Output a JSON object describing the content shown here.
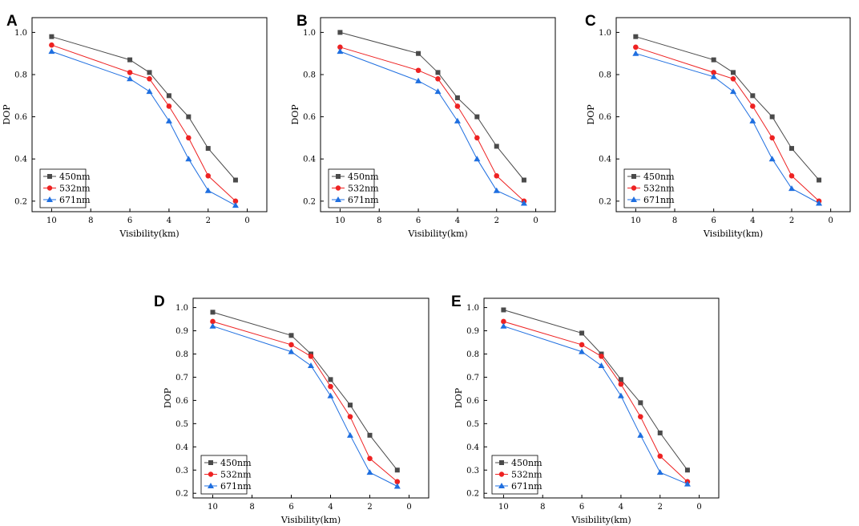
{
  "figure": {
    "colors": {
      "s450": "#4a4a4a",
      "s532": "#ee2222",
      "s671": "#1f6fe0",
      "frame": "#000000"
    }
  },
  "chart_data": [
    {
      "type": "line",
      "panel": "A",
      "xlabel": "Visibility(km)",
      "ylabel": "DOP",
      "xlim": [
        11,
        -1
      ],
      "ylim": [
        0.15,
        1.07
      ],
      "xticks": [
        10,
        8,
        6,
        4,
        2,
        0
      ],
      "yticks": [
        0.2,
        0.4,
        0.6,
        0.8,
        1.0
      ],
      "ytick_labels": [
        "0.2",
        "0.4",
        "0.6",
        "0.8",
        "1.0"
      ],
      "x": [
        10,
        6,
        5,
        4,
        3,
        2,
        0.6
      ],
      "series": [
        {
          "name": "450nm",
          "marker": "square",
          "values": [
            0.98,
            0.87,
            0.81,
            0.7,
            0.6,
            0.45,
            0.3
          ]
        },
        {
          "name": "532nm",
          "marker": "circle",
          "values": [
            0.94,
            0.81,
            0.78,
            0.65,
            0.5,
            0.32,
            0.2
          ]
        },
        {
          "name": "671nm",
          "marker": "triangle",
          "values": [
            0.91,
            0.78,
            0.72,
            0.58,
            0.4,
            0.25,
            0.18
          ]
        }
      ],
      "legend_position": "bottom-left"
    },
    {
      "type": "line",
      "panel": "B",
      "xlabel": "Visibility(km)",
      "ylabel": "DOP",
      "xlim": [
        11,
        -1
      ],
      "ylim": [
        0.15,
        1.07
      ],
      "xticks": [
        10,
        8,
        6,
        4,
        2,
        0
      ],
      "yticks": [
        0.2,
        0.4,
        0.6,
        0.8,
        1.0
      ],
      "ytick_labels": [
        "0.2",
        "0.4",
        "0.6",
        "0.8",
        "1.0"
      ],
      "x": [
        10,
        6,
        5,
        4,
        3,
        2,
        0.6
      ],
      "series": [
        {
          "name": "450nm",
          "marker": "square",
          "values": [
            1.0,
            0.9,
            0.81,
            0.69,
            0.6,
            0.46,
            0.3
          ]
        },
        {
          "name": "532nm",
          "marker": "circle",
          "values": [
            0.93,
            0.82,
            0.78,
            0.65,
            0.5,
            0.32,
            0.2
          ]
        },
        {
          "name": "671nm",
          "marker": "triangle",
          "values": [
            0.91,
            0.77,
            0.72,
            0.58,
            0.4,
            0.25,
            0.19
          ]
        }
      ],
      "legend_position": "bottom-left"
    },
    {
      "type": "line",
      "panel": "C",
      "xlabel": "Visibility(km)",
      "ylabel": "DOP",
      "xlim": [
        11,
        -1
      ],
      "ylim": [
        0.15,
        1.07
      ],
      "xticks": [
        10,
        8,
        6,
        4,
        2,
        0
      ],
      "yticks": [
        0.2,
        0.4,
        0.6,
        0.8,
        1.0
      ],
      "ytick_labels": [
        "0.2",
        "0.4",
        "0.6",
        "0.8",
        "1.0"
      ],
      "x": [
        10,
        6,
        5,
        4,
        3,
        2,
        0.6
      ],
      "series": [
        {
          "name": "450nm",
          "marker": "square",
          "values": [
            0.98,
            0.87,
            0.81,
            0.7,
            0.6,
            0.45,
            0.3
          ]
        },
        {
          "name": "532nm",
          "marker": "circle",
          "values": [
            0.93,
            0.81,
            0.78,
            0.65,
            0.5,
            0.32,
            0.2
          ]
        },
        {
          "name": "671nm",
          "marker": "triangle",
          "values": [
            0.9,
            0.79,
            0.72,
            0.58,
            0.4,
            0.26,
            0.19
          ]
        }
      ],
      "legend_position": "bottom-left"
    },
    {
      "type": "line",
      "panel": "D",
      "xlabel": "Visibility(km)",
      "ylabel": "DOP",
      "xlim": [
        11,
        -1
      ],
      "ylim": [
        0.18,
        1.04
      ],
      "xticks": [
        10,
        8,
        6,
        4,
        2,
        0
      ],
      "yticks": [
        0.2,
        0.3,
        0.4,
        0.5,
        0.6,
        0.7,
        0.8,
        0.9,
        1.0
      ],
      "ytick_labels": [
        "0.2",
        "0.3",
        "0.4",
        "0.5",
        "0.6",
        "0.7",
        "0.8",
        "0.9",
        "1.0"
      ],
      "x": [
        10,
        6,
        5,
        4,
        3,
        2,
        0.6
      ],
      "series": [
        {
          "name": "450nm",
          "marker": "square",
          "values": [
            0.98,
            0.88,
            0.8,
            0.69,
            0.58,
            0.45,
            0.3
          ]
        },
        {
          "name": "532nm",
          "marker": "circle",
          "values": [
            0.94,
            0.84,
            0.79,
            0.66,
            0.53,
            0.35,
            0.25
          ]
        },
        {
          "name": "671nm",
          "marker": "triangle",
          "values": [
            0.92,
            0.81,
            0.75,
            0.62,
            0.45,
            0.29,
            0.23
          ]
        }
      ],
      "legend_position": "bottom-left"
    },
    {
      "type": "line",
      "panel": "E",
      "xlabel": "Visibility(km)",
      "ylabel": "DOP",
      "xlim": [
        11,
        -1
      ],
      "ylim": [
        0.18,
        1.04
      ],
      "xticks": [
        10,
        8,
        6,
        4,
        2,
        0
      ],
      "yticks": [
        0.2,
        0.3,
        0.4,
        0.5,
        0.6,
        0.7,
        0.8,
        0.9,
        1.0
      ],
      "ytick_labels": [
        "0.2",
        "0.3",
        "0.4",
        "0.5",
        "0.6",
        "0.7",
        "0.8",
        "0.9",
        "1.0"
      ],
      "x": [
        10,
        6,
        5,
        4,
        3,
        2,
        0.6
      ],
      "series": [
        {
          "name": "450nm",
          "marker": "square",
          "values": [
            0.99,
            0.89,
            0.8,
            0.69,
            0.59,
            0.46,
            0.3
          ]
        },
        {
          "name": "532nm",
          "marker": "circle",
          "values": [
            0.94,
            0.84,
            0.79,
            0.67,
            0.53,
            0.36,
            0.25
          ]
        },
        {
          "name": "671nm",
          "marker": "triangle",
          "values": [
            0.92,
            0.81,
            0.75,
            0.62,
            0.45,
            0.29,
            0.24
          ]
        }
      ],
      "legend_position": "bottom-left"
    }
  ]
}
